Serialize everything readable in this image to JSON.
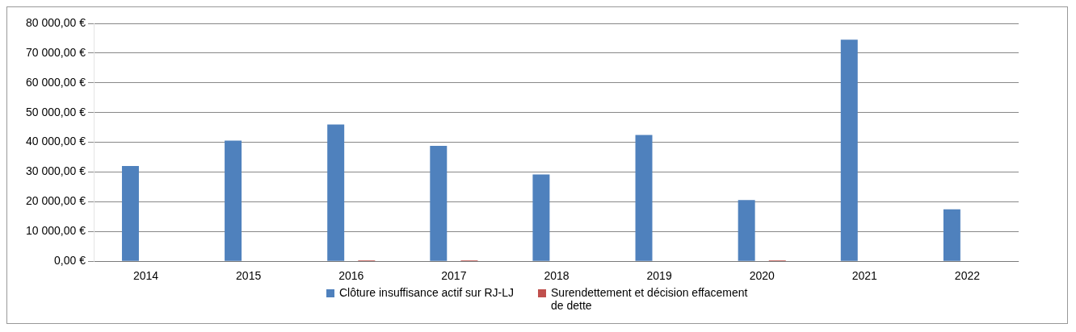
{
  "chart_data": {
    "type": "bar",
    "categories": [
      "2014",
      "2015",
      "2016",
      "2017",
      "2018",
      "2019",
      "2020",
      "2021",
      "2022"
    ],
    "series": [
      {
        "name": "Clôture insuffisance actif sur RJ-LJ",
        "color": "#4f81bd",
        "values": [
          32000,
          40600,
          46000,
          38800,
          29200,
          42500,
          20600,
          74500,
          17500
        ]
      },
      {
        "name": "Surendettement et décision effacement de dette",
        "color": "#c0504d",
        "values": [
          0,
          0,
          300,
          300,
          0,
          0,
          300,
          0,
          0
        ]
      }
    ],
    "ylim": [
      0,
      80000
    ],
    "yticks": [
      {
        "value": 0,
        "label": "0,00 €"
      },
      {
        "value": 10000,
        "label": "10 000,00 €"
      },
      {
        "value": 20000,
        "label": "20 000,00 €"
      },
      {
        "value": 30000,
        "label": "30 000,00 €"
      },
      {
        "value": 40000,
        "label": "40 000,00 €"
      },
      {
        "value": 50000,
        "label": "50 000,00 €"
      },
      {
        "value": 60000,
        "label": "60 000,00 €"
      },
      {
        "value": 70000,
        "label": "70 000,00 €"
      },
      {
        "value": 80000,
        "label": "80 000,00 €"
      }
    ],
    "grid": "y",
    "legend": "bottom"
  }
}
